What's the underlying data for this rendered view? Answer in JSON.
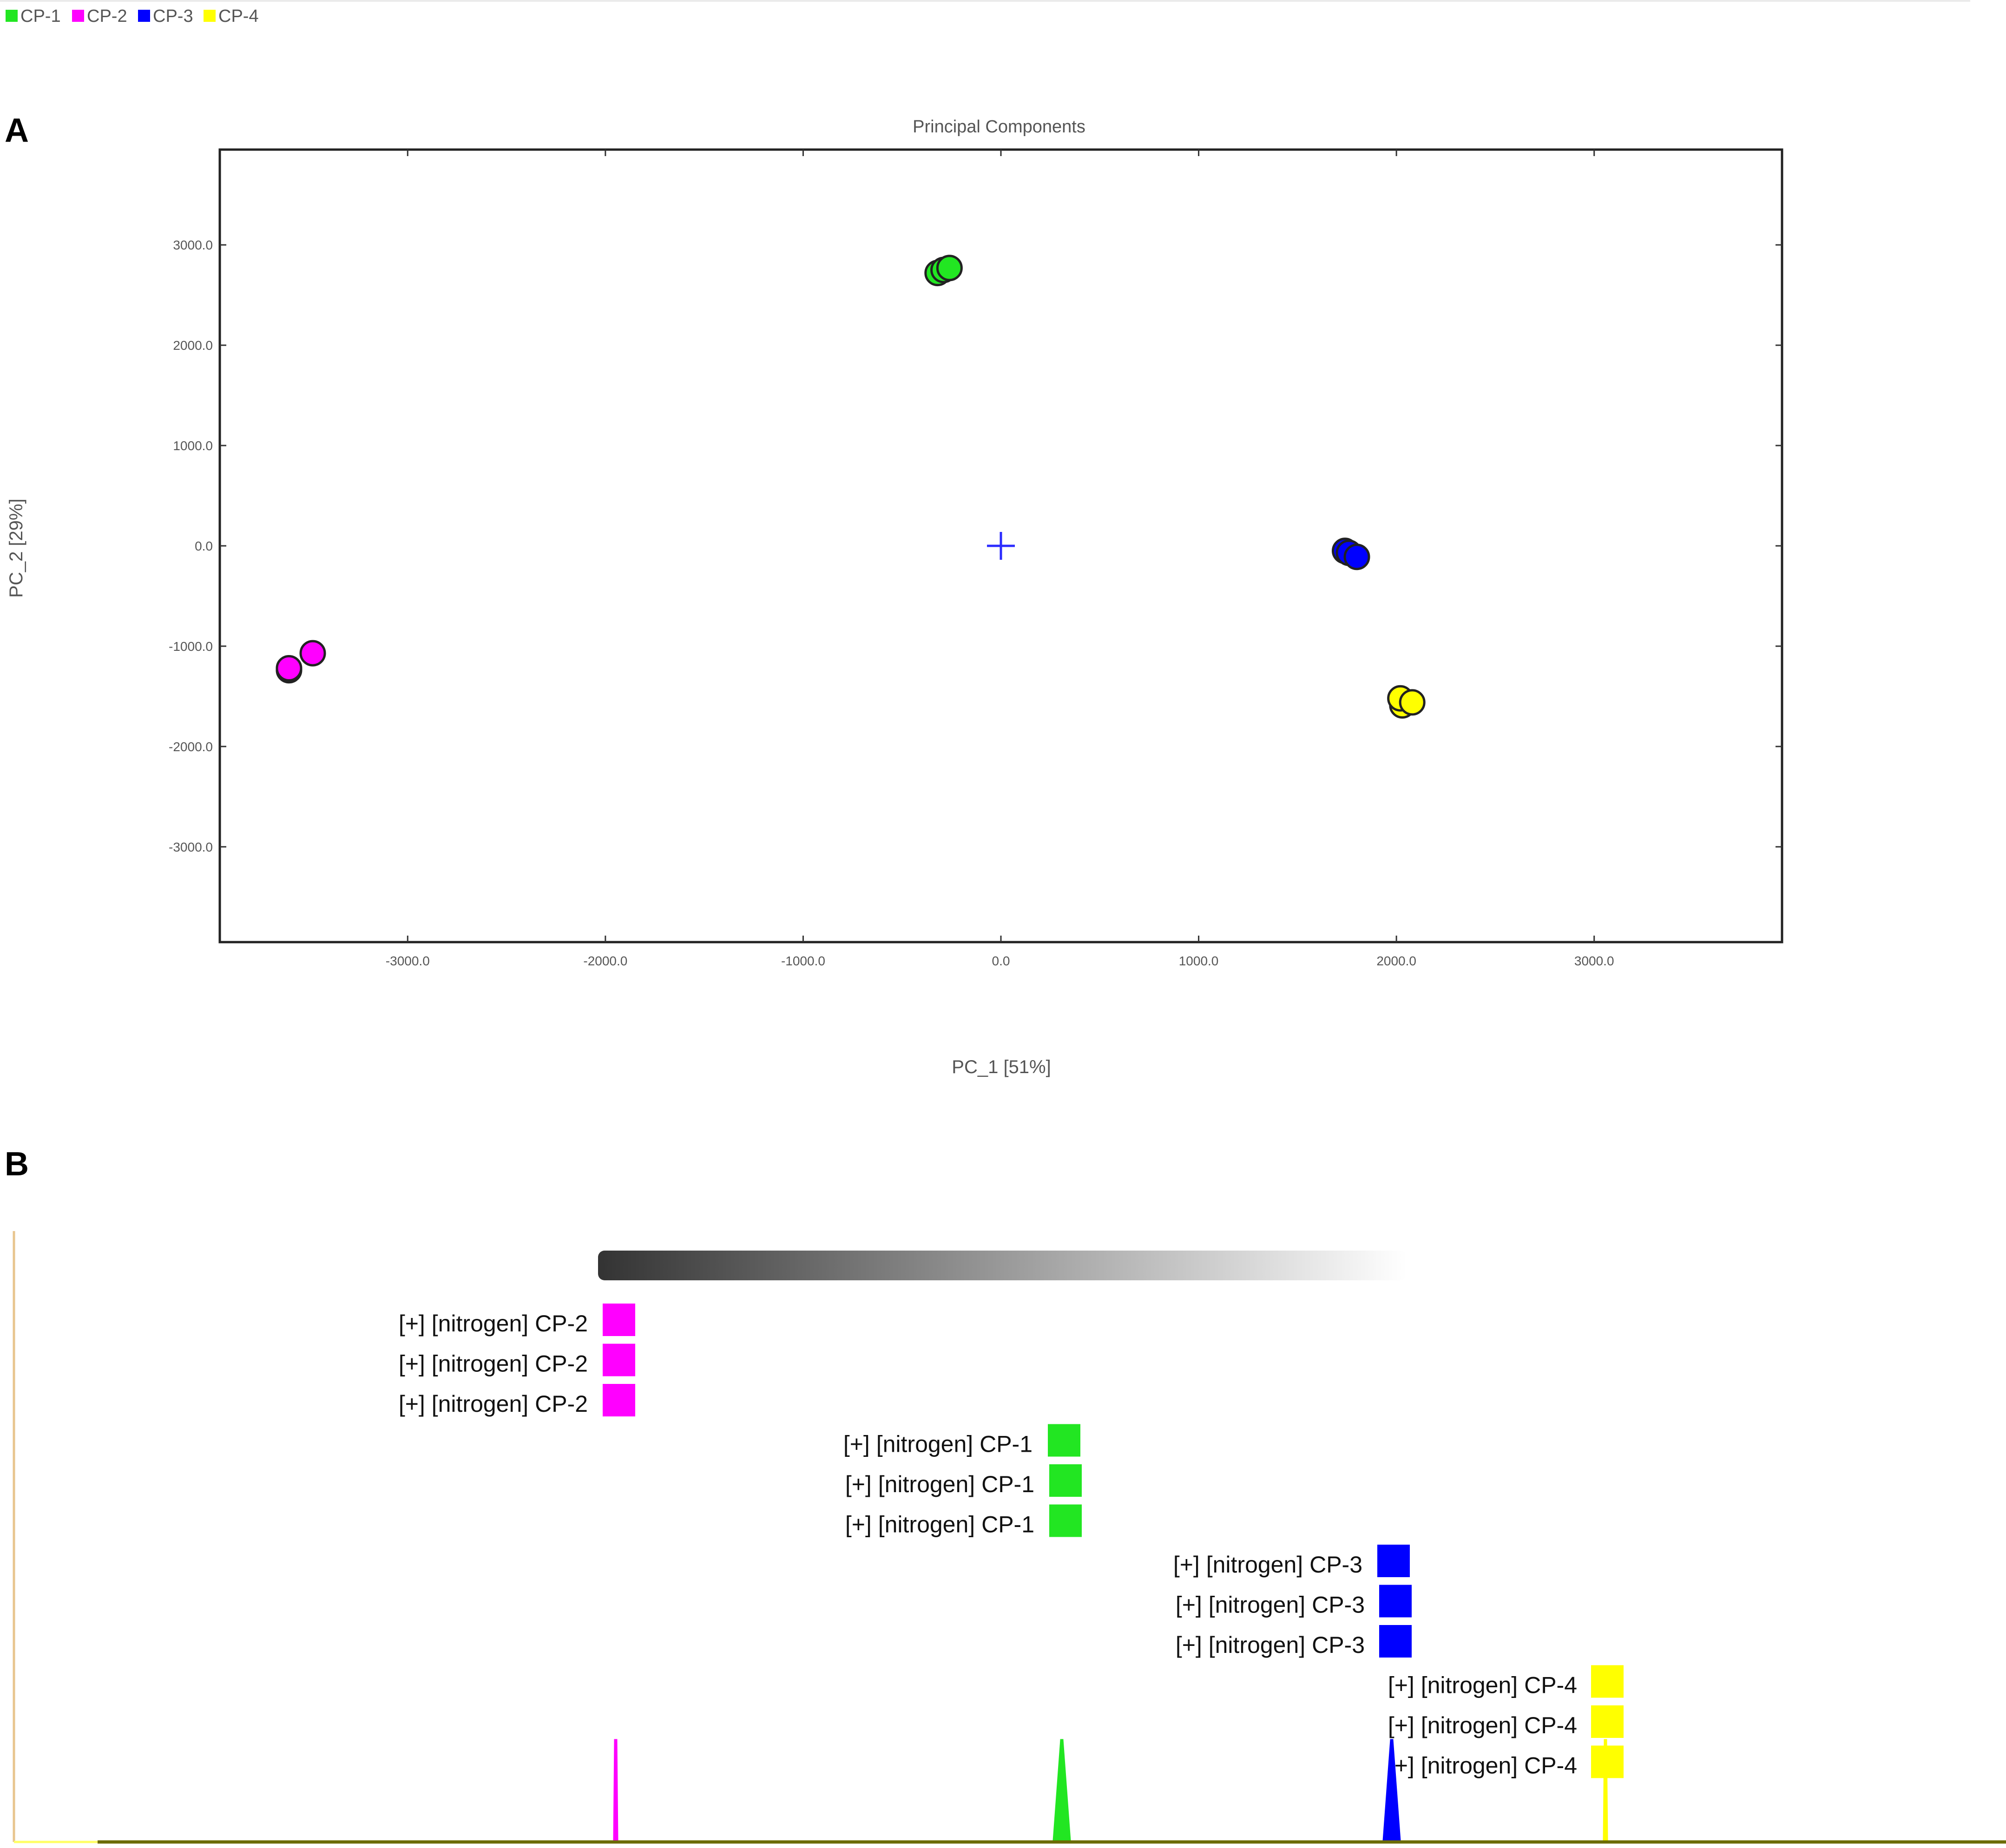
{
  "legend": {
    "items": [
      {
        "label": "CP-1",
        "color": "#22e622"
      },
      {
        "label": "CP-2",
        "color": "#ff00ff"
      },
      {
        "label": "CP-3",
        "color": "#0000ff"
      },
      {
        "label": "CP-4",
        "color": "#ffff00"
      }
    ]
  },
  "panel_a": {
    "label": "A"
  },
  "panel_b": {
    "label": "B"
  },
  "chart_data": [
    {
      "type": "scatter",
      "title": "Principal Components",
      "xlabel": "PC_1 [51%]",
      "ylabel": "PC_2 [29%]",
      "xlim": [
        -3950,
        3950
      ],
      "ylim": [
        -3950,
        3950
      ],
      "xticks": [
        -3000,
        -2000,
        -1000,
        0,
        1000,
        2000,
        3000
      ],
      "xtick_labels": [
        "-3000.0",
        "-2000.0",
        "-1000.0",
        "0.0",
        "1000.0",
        "2000.0",
        "3000.0"
      ],
      "yticks": [
        3000,
        2000,
        1000,
        0,
        -1000,
        -2000,
        -3000
      ],
      "ytick_labels": [
        "3000.0",
        "2000.0",
        "1000.0",
        "0.0",
        "-1000.0",
        "-2000.0",
        "-3000.0"
      ],
      "origin_marker": [
        0,
        0
      ],
      "grid": false,
      "series": [
        {
          "name": "CP-1",
          "color": "#22e622",
          "points": [
            [
              -320,
              2720
            ],
            [
              -290,
              2750
            ],
            [
              -260,
              2770
            ]
          ]
        },
        {
          "name": "CP-2",
          "color": "#ff00ff",
          "points": [
            [
              -3600,
              -1240
            ],
            [
              -3600,
              -1220
            ],
            [
              -3480,
              -1070
            ]
          ]
        },
        {
          "name": "CP-3",
          "color": "#0000ff",
          "points": [
            [
              1740,
              -50
            ],
            [
              1760,
              -70
            ],
            [
              1800,
              -110
            ]
          ]
        },
        {
          "name": "CP-4",
          "color": "#ffff00",
          "points": [
            [
              2030,
              -1590
            ],
            [
              2020,
              -1520
            ],
            [
              2080,
              -1560
            ]
          ]
        }
      ]
    },
    {
      "type": "line",
      "gradient_bar": {
        "from": "#333333",
        "to": "#ffffff"
      },
      "labels": [
        {
          "text": "[+] [nitrogen] CP-2",
          "color": "#ff00ff"
        },
        {
          "text": "[+] [nitrogen] CP-2",
          "color": "#ff00ff"
        },
        {
          "text": "[+] [nitrogen] CP-2",
          "color": "#ff00ff"
        },
        {
          "text": "[+] [nitrogen] CP-1",
          "color": "#22e622"
        },
        {
          "text": "[+] [nitrogen] CP-1",
          "color": "#22e622"
        },
        {
          "text": "[+] [nitrogen] CP-1",
          "color": "#22e622"
        },
        {
          "text": "[+] [nitrogen] CP-3",
          "color": "#0000ff"
        },
        {
          "text": "[+] [nitrogen] CP-3",
          "color": "#0000ff"
        },
        {
          "text": "[+] [nitrogen] CP-3",
          "color": "#0000ff"
        },
        {
          "text": "[+] [nitrogen] CP-4",
          "color": "#ffff00"
        },
        {
          "text": "[+] [nitrogen] CP-4",
          "color": "#ffff00"
        },
        {
          "text": "[+] [nitrogen] CP-4",
          "color": "#ffff00"
        }
      ],
      "peaks": [
        {
          "name": "CP-2",
          "color": "#ff00ff"
        },
        {
          "name": "CP-1",
          "color": "#22e622"
        },
        {
          "name": "CP-3",
          "color": "#0000ff"
        },
        {
          "name": "CP-4",
          "color": "#ffff00"
        }
      ]
    }
  ]
}
